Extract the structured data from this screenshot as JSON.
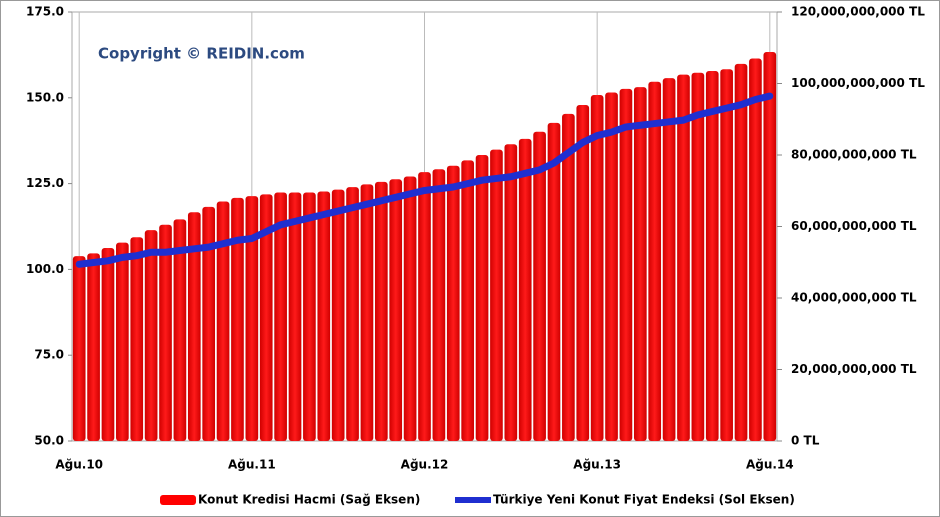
{
  "chart_data": {
    "type": "bar_line",
    "annotation": "Copyright © REIDIN.com",
    "categories": [
      "Ağu.10",
      null,
      null,
      null,
      null,
      null,
      null,
      null,
      null,
      null,
      null,
      null,
      "Ağu.11",
      null,
      null,
      null,
      null,
      null,
      null,
      null,
      null,
      null,
      null,
      null,
      "Ağu.12",
      null,
      null,
      null,
      null,
      null,
      null,
      null,
      null,
      null,
      null,
      null,
      "Ağu.13",
      null,
      null,
      null,
      null,
      null,
      null,
      null,
      null,
      null,
      null,
      null,
      "Ağu.14"
    ],
    "series": [
      {
        "name": "Konut Kredisi Hacmi (Sağ Eksen)",
        "type": "bar",
        "axis": "y2",
        "color": "#ff0000",
        "values": [
          51700000000,
          52500000000,
          54000000000,
          55500000000,
          57000000000,
          59000000000,
          60500000000,
          62000000000,
          64000000000,
          65500000000,
          67000000000,
          68000000000,
          68500000000,
          69000000000,
          69500000000,
          69500000000,
          69500000000,
          69800000000,
          70300000000,
          71000000000,
          71800000000,
          72500000000,
          73200000000,
          74000000000,
          75200000000,
          76000000000,
          77000000000,
          78500000000,
          80000000000,
          81500000000,
          83000000000,
          84500000000,
          86500000000,
          89000000000,
          91500000000,
          94000000000,
          96800000000,
          97500000000,
          98500000000,
          99000000000,
          100500000000,
          101500000000,
          102500000000,
          103000000000,
          103500000000,
          104000000000,
          105500000000,
          107000000000,
          108800000000
        ]
      },
      {
        "name": "Türkiye Yeni Konut Fiyat Endeksi (Sol Eksen)",
        "type": "line",
        "axis": "y",
        "color": "#1f2fd0",
        "values": [
          101.5,
          102,
          102.5,
          103.5,
          104,
          105,
          105,
          105.5,
          106,
          106.5,
          107.5,
          108.5,
          109,
          111,
          113,
          114,
          115,
          116,
          117,
          118,
          119,
          120,
          121,
          122,
          123,
          123.5,
          124,
          125,
          126,
          126.5,
          127,
          128,
          129,
          131,
          134,
          137,
          139,
          140,
          141.5,
          142,
          142.5,
          143,
          143.5,
          145,
          146,
          147,
          148,
          149.5,
          150.5
        ]
      }
    ],
    "ylim": [
      50,
      175
    ],
    "yticks": [
      {
        "value": 50,
        "label": "50.0"
      },
      {
        "value": 75,
        "label": "75.0"
      },
      {
        "value": 100,
        "label": "100.0"
      },
      {
        "value": 125,
        "label": "125.0"
      },
      {
        "value": 150,
        "label": "150.0"
      },
      {
        "value": 175,
        "label": "175.0"
      }
    ],
    "y2lim": [
      0,
      120000000000
    ],
    "y2ticks": [
      {
        "value": 0,
        "label": "0 TL"
      },
      {
        "value": 20000000000,
        "label": "20,000,000,000 TL"
      },
      {
        "value": 40000000000,
        "label": "40,000,000,000 TL"
      },
      {
        "value": 60000000000,
        "label": "60,000,000,000 TL"
      },
      {
        "value": 80000000000,
        "label": "80,000,000,000 TL"
      },
      {
        "value": 100000000000,
        "label": "100,000,000,000 TL"
      },
      {
        "value": 120000000000,
        "label": "120,000,000,000 TL"
      }
    ],
    "legend": "bottom"
  }
}
